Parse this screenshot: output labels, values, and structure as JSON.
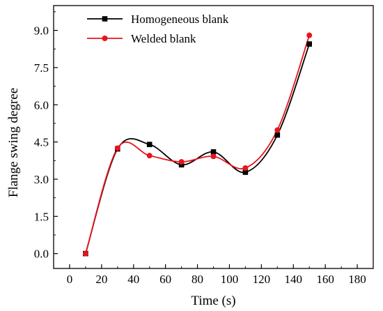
{
  "chart_data": {
    "type": "line",
    "title": "",
    "xlabel": "Time (s)",
    "ylabel": "Flange swing degree",
    "xlim": [
      -10,
      190
    ],
    "ylim": [
      -0.6,
      10.0
    ],
    "xticks": [
      0,
      20,
      40,
      60,
      80,
      100,
      120,
      140,
      160,
      180
    ],
    "yticks": [
      0.0,
      1.5,
      3.0,
      4.5,
      6.0,
      7.5,
      9.0
    ],
    "xtick_labels": [
      "0",
      "20",
      "40",
      "60",
      "80",
      "100",
      "120",
      "140",
      "160",
      "180"
    ],
    "ytick_labels": [
      "0.0",
      "1.5",
      "3.0",
      "4.5",
      "6.0",
      "7.5",
      "9.0"
    ],
    "grid": false,
    "legend_position": "top-left",
    "series": [
      {
        "name": "Homogeneous blank",
        "color": "#000000",
        "marker": "square",
        "x": [
          10,
          30,
          50,
          70,
          90,
          110,
          130,
          150
        ],
        "y": [
          0.0,
          4.22,
          4.4,
          3.58,
          4.1,
          3.28,
          4.78,
          8.45
        ]
      },
      {
        "name": "Welded blank",
        "color": "#e8141c",
        "marker": "circle",
        "x": [
          10,
          30,
          50,
          70,
          90,
          110,
          130,
          150
        ],
        "y": [
          0.0,
          4.25,
          3.95,
          3.7,
          3.92,
          3.45,
          4.98,
          8.8
        ]
      }
    ]
  }
}
